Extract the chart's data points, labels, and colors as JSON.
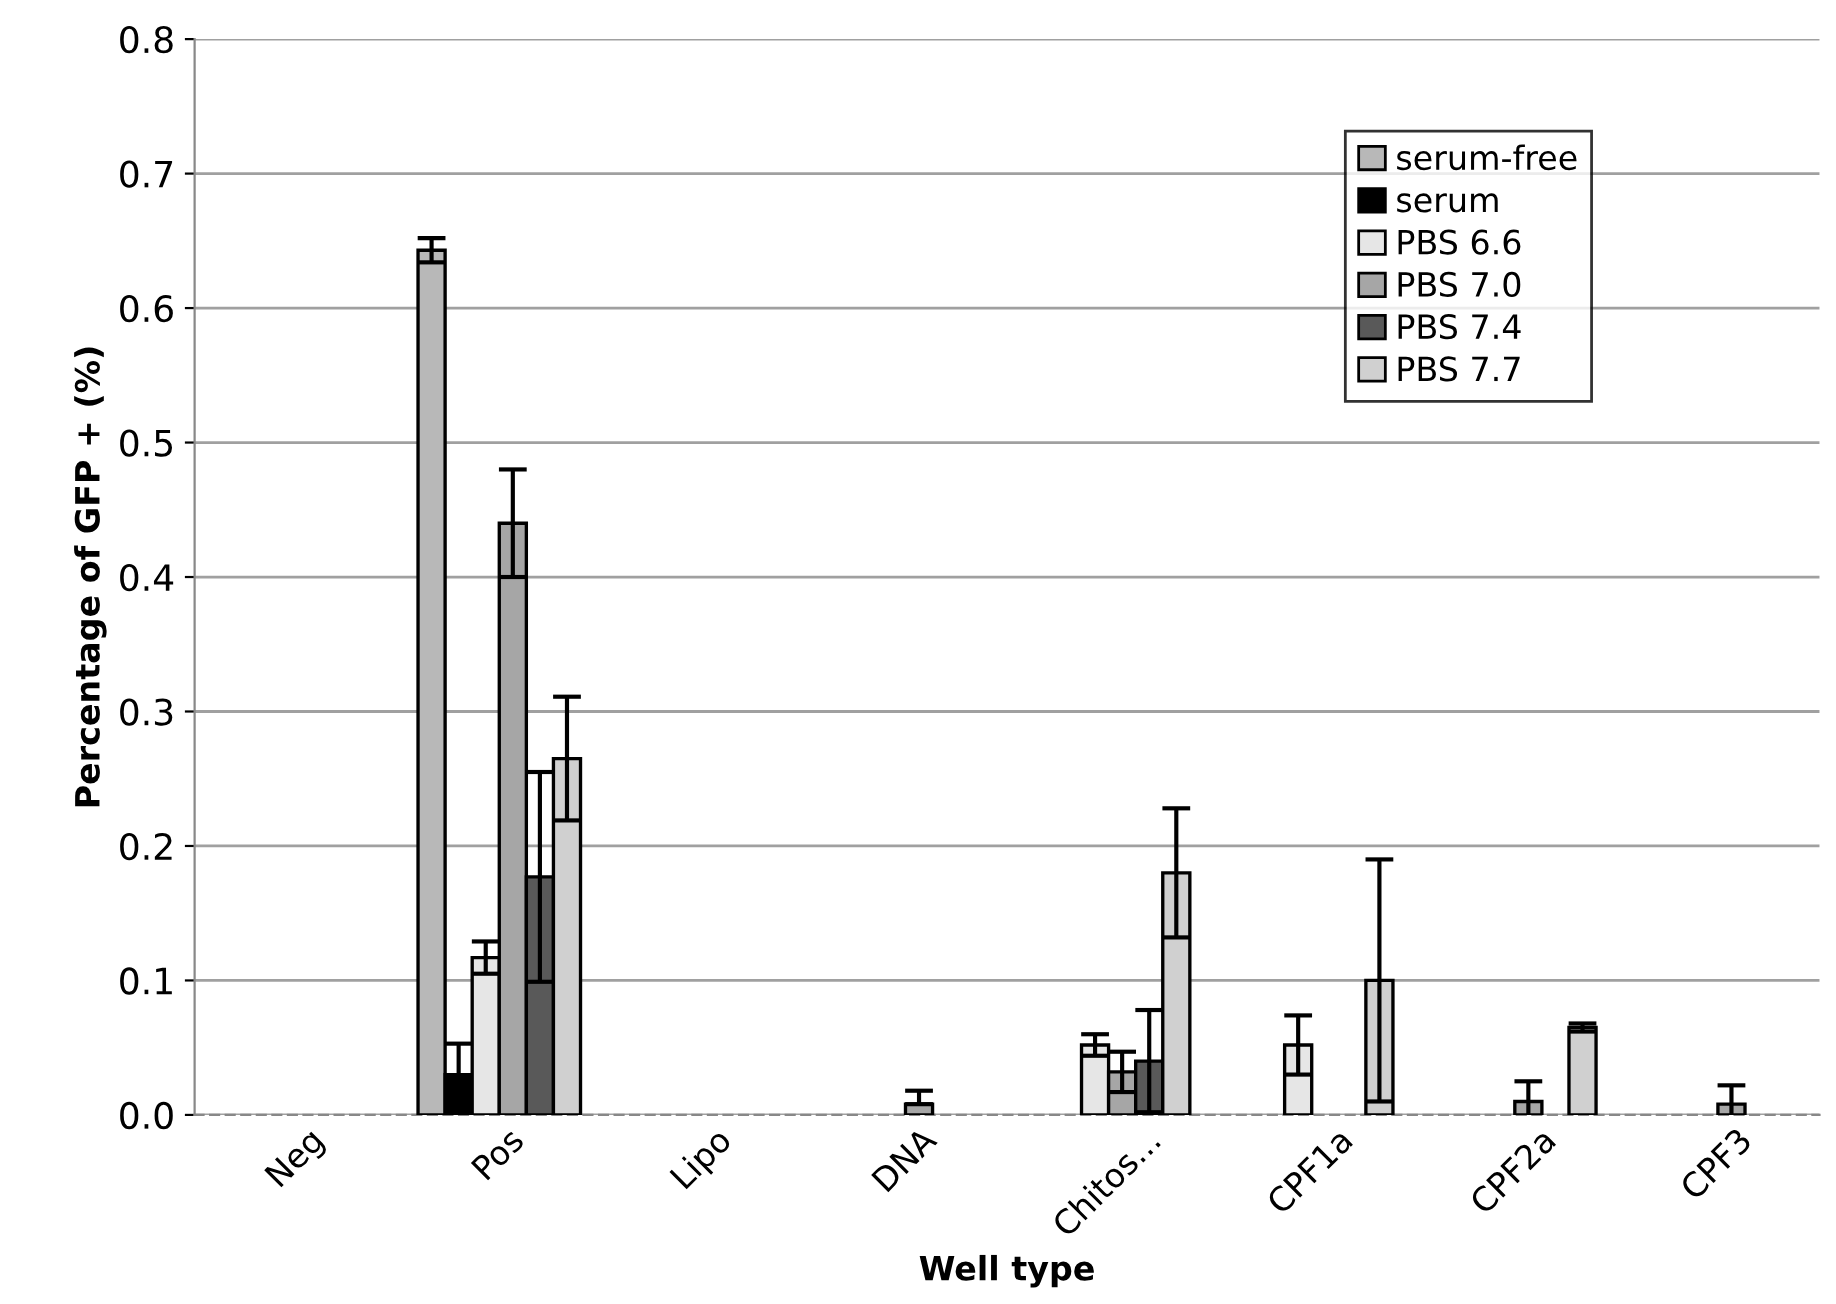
{
  "chart_data": {
    "type": "bar",
    "xlabel": "Well type",
    "ylabel": "Percentage of GFP + (%)",
    "categories": [
      "Neg",
      "Pos",
      "Lipo",
      "DNA",
      "Chitos...",
      "CPF1a",
      "CPF2a",
      "CPF3"
    ],
    "series": [
      {
        "name": "serum-free",
        "color": "#b8b8b8",
        "values": [
          null,
          0.643,
          null,
          null,
          null,
          null,
          null,
          null
        ],
        "errors": [
          null,
          0.009,
          null,
          null,
          null,
          null,
          null,
          null
        ]
      },
      {
        "name": "serum",
        "color": "#000000",
        "values": [
          null,
          0.03,
          null,
          null,
          null,
          null,
          null,
          null
        ],
        "errors": [
          null,
          0.023,
          null,
          null,
          null,
          null,
          null,
          null
        ]
      },
      {
        "name": "PBS 6.6",
        "color": "#e6e6e6",
        "values": [
          null,
          0.117,
          null,
          null,
          0.052,
          0.052,
          null,
          null
        ],
        "errors": [
          null,
          0.012,
          null,
          null,
          0.008,
          0.022,
          null,
          null
        ]
      },
      {
        "name": "PBS 7.0",
        "color": "#a6a6a6",
        "values": [
          null,
          0.44,
          null,
          0.008,
          0.032,
          null,
          0.01,
          0.008
        ],
        "errors": [
          null,
          0.04,
          null,
          [
            0.008,
            0.018
          ],
          0.015,
          null,
          0.015,
          0.014
        ]
      },
      {
        "name": "PBS 7.4",
        "color": "#595959",
        "values": [
          null,
          0.177,
          null,
          null,
          0.04,
          null,
          null,
          null
        ],
        "errors": [
          null,
          0.078,
          null,
          null,
          0.038,
          null,
          null,
          null
        ]
      },
      {
        "name": "PBS 7.7",
        "color": "#d0d0d0",
        "values": [
          null,
          0.265,
          null,
          null,
          0.18,
          0.1,
          0.065,
          null
        ],
        "errors": [
          null,
          0.046,
          null,
          null,
          0.048,
          0.09,
          0.003,
          null
        ]
      }
    ],
    "ylim": [
      0,
      0.8
    ],
    "yticks": [
      {
        "value": 0,
        "label": "0.0"
      },
      {
        "value": 0.1,
        "label": "0.1"
      },
      {
        "value": 0.2,
        "label": "0.2"
      },
      {
        "value": 0.3,
        "label": "0.3"
      },
      {
        "value": 0.4,
        "label": "0.4"
      },
      {
        "value": 0.5,
        "label": "0.5"
      },
      {
        "value": 0.6,
        "label": "0.6"
      },
      {
        "value": 0.7,
        "label": "0.7"
      },
      {
        "value": 0.8,
        "label": "0.8"
      }
    ],
    "grid": "y",
    "legend": "top right"
  }
}
